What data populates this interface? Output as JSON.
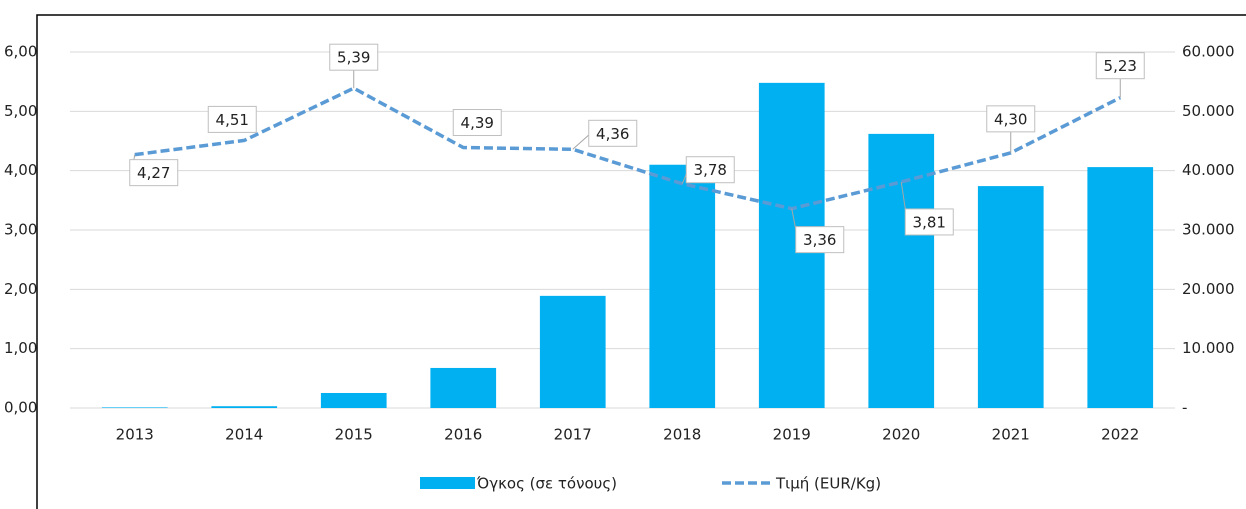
{
  "chart_data": {
    "type": "bar-line",
    "categories": [
      "2013",
      "2014",
      "2015",
      "2016",
      "2017",
      "2018",
      "2019",
      "2020",
      "2021",
      "2022"
    ],
    "series": [
      {
        "name": "Όγκος (σε τόνους)",
        "type": "bar",
        "axis": "y2",
        "color": "#00b0f0",
        "values": [
          100,
          300,
          2530,
          6750,
          18900,
          41000,
          54800,
          46200,
          37400,
          40600
        ]
      },
      {
        "name": "Τιμή (EUR/Kg)",
        "type": "line",
        "axis": "y",
        "color": "#5b9bd5",
        "values": [
          4.27,
          4.51,
          5.39,
          4.39,
          4.36,
          3.78,
          3.36,
          3.81,
          4.3,
          5.23
        ],
        "value_labels": [
          "4,27",
          "4,51",
          "5,39",
          "4,39",
          "4,36",
          "3,78",
          "3,36",
          "3,81",
          "4,30",
          "5,23"
        ]
      }
    ],
    "ylim": [
      0,
      6
    ],
    "yticks": [
      {
        "value": 0,
        "label": "0,00"
      },
      {
        "value": 1,
        "label": "1,00"
      },
      {
        "value": 2,
        "label": "2,00"
      },
      {
        "value": 3,
        "label": "3,00"
      },
      {
        "value": 4,
        "label": "4,00"
      },
      {
        "value": 5,
        "label": "5,00"
      },
      {
        "value": 6,
        "label": "6,00"
      }
    ],
    "y2lim": [
      0,
      60000
    ],
    "y2ticks": [
      {
        "value": 0,
        "label": "-"
      },
      {
        "value": 10000,
        "label": "10.000"
      },
      {
        "value": 20000,
        "label": "20.000"
      },
      {
        "value": 30000,
        "label": "30.000"
      },
      {
        "value": 40000,
        "label": "40.000"
      },
      {
        "value": 50000,
        "label": "50.000"
      },
      {
        "value": 60000,
        "label": "60.000"
      }
    ],
    "grid": true,
    "legend": "bottom"
  }
}
